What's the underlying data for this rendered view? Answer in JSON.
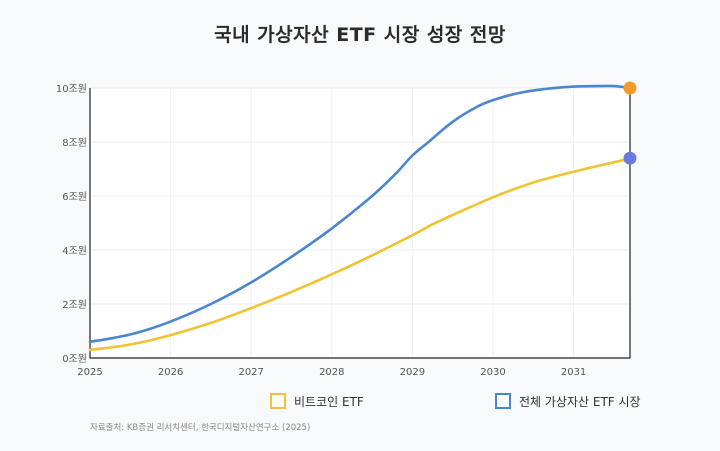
{
  "chart_data": {
    "type": "line",
    "title": "국내 가상자산 ETF 시장 성장 전망",
    "xlabel": "",
    "ylabel": "",
    "x_ticks": [
      "2025",
      "2026",
      "2027",
      "2028",
      "2029",
      "2030",
      "2031"
    ],
    "y_ticks": [
      "0조원",
      "2조원",
      "4조원",
      "6조원",
      "8조원",
      "10조원"
    ],
    "xlim": [
      2025,
      2031.7
    ],
    "ylim": [
      0,
      10
    ],
    "grid": true,
    "legend_position": "bottom",
    "series": [
      {
        "name": "비트코인 ETF",
        "color": "#f1c232",
        "x": [
          2025,
          2025.5,
          2026,
          2026.5,
          2027,
          2027.5,
          2028,
          2028.5,
          2029,
          2029.25,
          2029.5,
          2030,
          2030.5,
          2031,
          2031.5,
          2031.7
        ],
        "y": [
          0.3,
          0.5,
          0.85,
          1.3,
          1.85,
          2.45,
          3.1,
          3.8,
          4.55,
          4.95,
          5.3,
          5.95,
          6.5,
          6.9,
          7.25,
          7.4
        ]
      },
      {
        "name": "전체 가상자산 ETF 시장",
        "color": "#4a86d0",
        "x": [
          2025,
          2025.3,
          2025.6,
          2026,
          2026.5,
          2027,
          2027.5,
          2028,
          2028.5,
          2028.8,
          2029,
          2029.2,
          2029.5,
          2029.8,
          2030,
          2030.3,
          2030.6,
          2031,
          2031.3,
          2031.5,
          2031.7
        ],
        "y": [
          0.6,
          0.75,
          0.95,
          1.35,
          2.0,
          2.8,
          3.75,
          4.8,
          6.0,
          6.85,
          7.5,
          8.0,
          8.75,
          9.3,
          9.55,
          9.8,
          9.95,
          10.05,
          10.07,
          10.07,
          10.0
        ]
      }
    ],
    "end_markers": [
      {
        "series": "전체 가상자산 ETF 시장",
        "x": 2031.7,
        "y": 10.0,
        "color": "#f39a2b"
      },
      {
        "series": "비트코인 ETF",
        "x": 2031.7,
        "y": 7.4,
        "color": "#6a7be0"
      }
    ]
  },
  "legend": {
    "bitcoin_label": "비트코인 ETF",
    "total_label": "전체 가상자산 ETF 시장"
  },
  "source": "자료출처: KB증권 리서치센터, 한국디지털자산연구소 (2025)"
}
